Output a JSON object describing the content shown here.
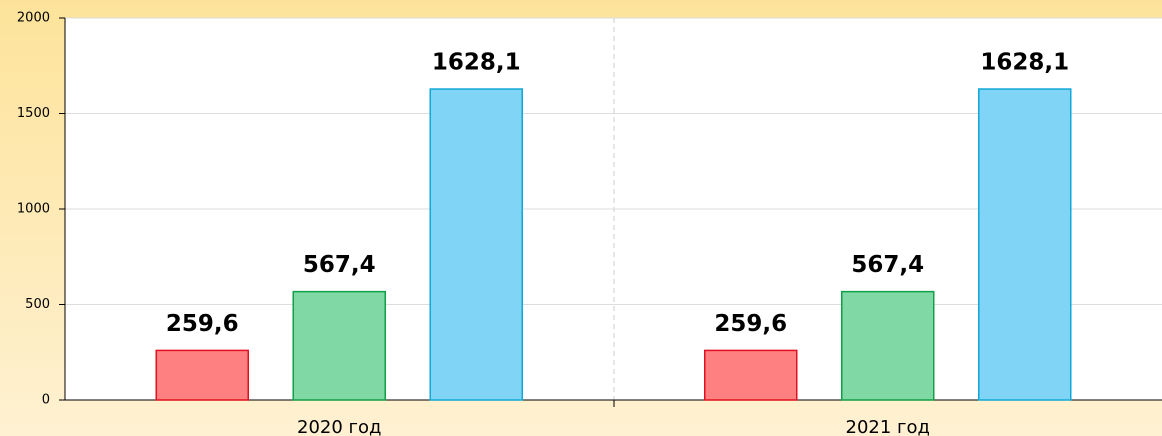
{
  "chart_data": {
    "type": "bar",
    "categories": [
      "2020 год",
      "2021 год"
    ],
    "series": [
      {
        "color": "#ff8080",
        "stroke": "#e01020",
        "values": [
          259.6,
          259.6
        ],
        "value_labels": [
          "259,6",
          "259,6"
        ]
      },
      {
        "color": "#80d8a4",
        "stroke": "#10a048",
        "values": [
          567.4,
          567.4
        ],
        "value_labels": [
          "567,4",
          "567,4"
        ]
      },
      {
        "color": "#80d4f6",
        "stroke": "#10a8d8",
        "values": [
          1628.1,
          1628.1
        ],
        "value_labels": [
          "1628,1",
          "1628,1"
        ]
      }
    ],
    "ylim": [
      0,
      2000
    ],
    "yticks": [
      0,
      500,
      1000,
      1500,
      2000
    ],
    "grid": true
  }
}
